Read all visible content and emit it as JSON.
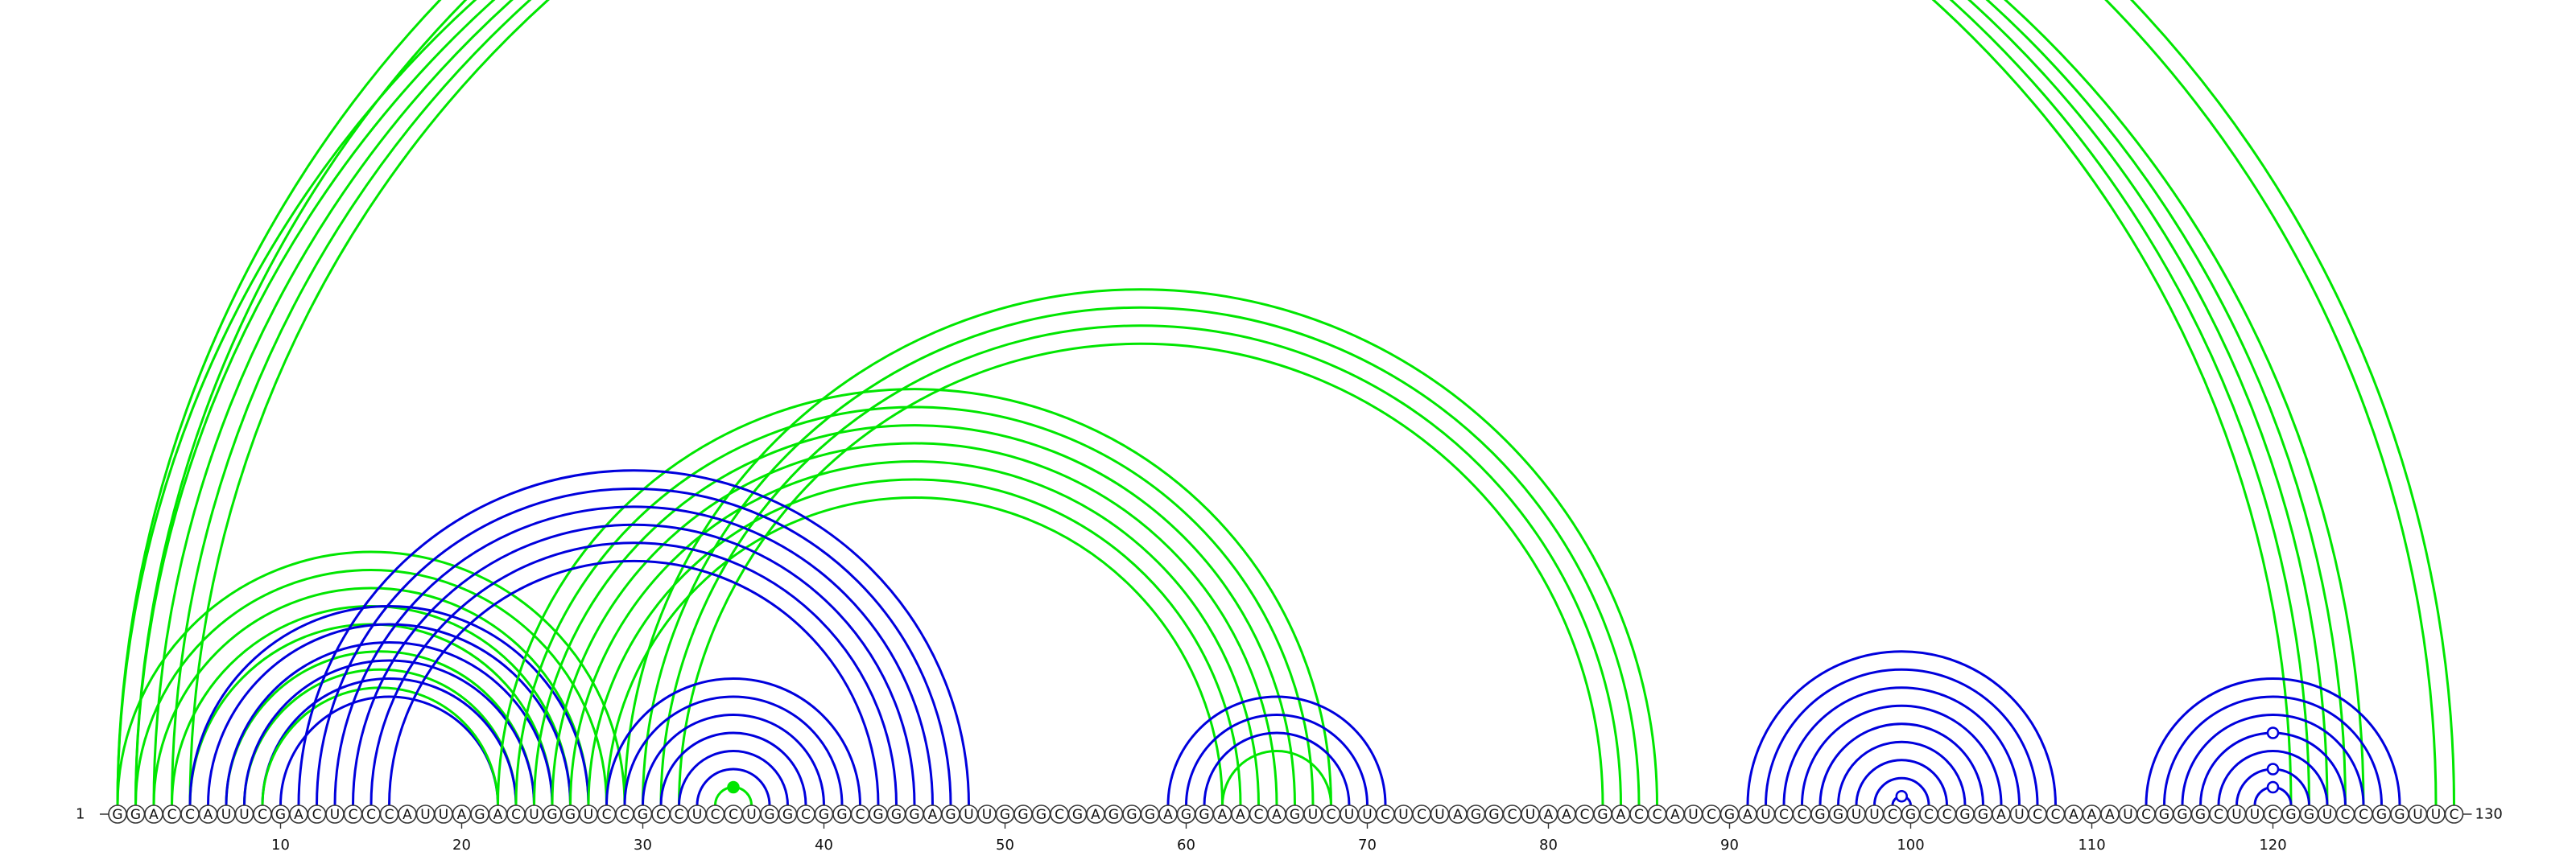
{
  "sequence": "GGACCAUUCGACUCCCAUUAGACUGGUCCGCCUCCUGGCGGCGGGAGUUGGGCGAGGGAGGAACAGUCUUCUCUAGGCUAACGACCAUCGAUCCGGUUCGCCGGAUCCAAAUCGGGCUUCGGUCCGGUUC",
  "start_label": "1",
  "end_label": "130",
  "tick_labels": [
    "10",
    "20",
    "30",
    "40",
    "50",
    "60",
    "70",
    "80",
    "90",
    "100",
    "110",
    "120"
  ],
  "colors": {
    "pair_group_a": "#00e600",
    "pair_group_b": "#0000dd",
    "backbone": "#333333"
  },
  "pair_groups": [
    {
      "color": "green",
      "pairs": [
        [
          1,
          121
        ],
        [
          2,
          122
        ],
        [
          3,
          123
        ],
        [
          4,
          124
        ],
        [
          5,
          125
        ],
        [
          1,
          130
        ],
        [
          2,
          129
        ]
      ]
    },
    {
      "color": "green",
      "pairs": [
        [
          1,
          29
        ],
        [
          2,
          28
        ],
        [
          3,
          27
        ],
        [
          4,
          26
        ],
        [
          5,
          25
        ],
        [
          7,
          24
        ],
        [
          8,
          23
        ]
      ]
    },
    {
      "color": "blue",
      "pairs": [
        [
          5,
          27
        ],
        [
          6,
          26
        ],
        [
          7,
          25
        ],
        [
          8,
          24
        ],
        [
          9,
          23
        ],
        [
          10,
          22
        ]
      ]
    },
    {
      "color": "green",
      "pairs": [
        [
          9,
          22
        ]
      ]
    },
    {
      "color": "green",
      "pairs": [
        [
          22,
          68
        ],
        [
          23,
          67
        ],
        [
          24,
          66
        ],
        [
          25,
          65
        ],
        [
          26,
          64
        ],
        [
          27,
          63
        ],
        [
          28,
          62
        ]
      ]
    },
    {
      "color": "green",
      "pairs": [
        [
          29,
          86
        ],
        [
          30,
          85
        ],
        [
          31,
          84
        ],
        [
          32,
          83
        ]
      ]
    },
    {
      "color": "blue",
      "pairs": [
        [
          11,
          48
        ],
        [
          12,
          47
        ],
        [
          13,
          46
        ],
        [
          14,
          45
        ],
        [
          15,
          44
        ],
        [
          16,
          43
        ]
      ]
    },
    {
      "color": "blue",
      "pairs": [
        [
          28,
          42
        ],
        [
          29,
          41
        ],
        [
          30,
          40
        ],
        [
          31,
          39
        ],
        [
          32,
          38
        ],
        [
          33,
          37
        ]
      ]
    },
    {
      "color": "green",
      "pairs": [
        [
          34,
          36
        ]
      ]
    },
    {
      "color": "blue",
      "pairs": [
        [
          59,
          71
        ],
        [
          60,
          70
        ],
        [
          61,
          69
        ]
      ]
    },
    {
      "color": "green",
      "pairs": [
        [
          62,
          68
        ]
      ]
    },
    {
      "color": "blue",
      "pairs": [
        [
          91,
          108
        ],
        [
          92,
          107
        ],
        [
          93,
          106
        ],
        [
          94,
          105
        ],
        [
          95,
          104
        ],
        [
          96,
          103
        ],
        [
          97,
          102
        ],
        [
          98,
          101
        ],
        [
          99,
          100
        ]
      ]
    },
    {
      "color": "blue",
      "pairs": [
        [
          113,
          127
        ],
        [
          114,
          126
        ],
        [
          115,
          125
        ],
        [
          116,
          124
        ],
        [
          117,
          123
        ],
        [
          118,
          122
        ],
        [
          119,
          121
        ]
      ]
    }
  ],
  "markers": [
    {
      "pos": 65.5,
      "pair": [
        1,
        130
      ],
      "fill": "white",
      "color": "green"
    },
    {
      "pos": 35,
      "pair": [
        34,
        36
      ],
      "fill": "filled",
      "color": "green"
    },
    {
      "pos": 99.5,
      "pair": [
        99,
        100
      ],
      "fill": "white",
      "color": "blue"
    },
    {
      "pos": 120,
      "pair": [
        119,
        121
      ],
      "fill": "white",
      "color": "blue"
    },
    {
      "pos": 120,
      "pair": [
        118,
        122
      ],
      "fill": "white",
      "color": "blue"
    },
    {
      "pos": 120,
      "pair": [
        116,
        124
      ],
      "fill": "white",
      "color": "blue"
    }
  ]
}
